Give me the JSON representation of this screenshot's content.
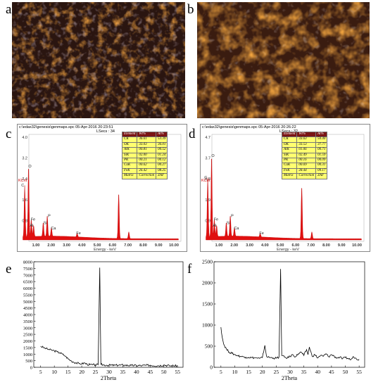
{
  "panels": {
    "a": "a",
    "b": "b",
    "c": "c",
    "d": "d",
    "e": "e",
    "f": "f"
  },
  "eds_c": {
    "file": "c:\\edax32\\genesis\\genmaps.spc",
    "date": "05-Apr-2016 20:23:51",
    "lsecs": "LSecs : 34",
    "y_ticks": [
      "4.0",
      "3.2",
      "2.4",
      "1.6",
      "0.8"
    ],
    "y_unit": "KCnt",
    "x_ticks": [
      "1.00",
      "2.00",
      "3.00",
      "4.00",
      "5.00",
      "6.00",
      "7.00",
      "8.00",
      "9.00",
      "10.00"
    ],
    "x_label": "Energy - keV",
    "peak_labels": [
      "C",
      "O",
      "Fe",
      "Al",
      "Si",
      "P",
      "Ca",
      "Fe"
    ],
    "table": {
      "headers": [
        "Element",
        "Wt%",
        "At%"
      ],
      "rows": [
        [
          "CK",
          "36.61",
          "53.39"
        ],
        [
          "OK",
          "33.03",
          "36.01"
        ],
        [
          "AlK",
          "00.81",
          "00.52"
        ],
        [
          "SiK",
          "02.00",
          "01.24"
        ],
        [
          "PK",
          "00.21",
          "00.12"
        ],
        [
          "CaK",
          "00.62",
          "00.27"
        ],
        [
          "FeK",
          "26.42",
          "08.25"
        ],
        [
          "Matrix",
          "Correction",
          "ZAF"
        ]
      ]
    }
  },
  "eds_d": {
    "file": "c:\\edax32\\genesis\\genmaps.spc",
    "date": "05-Apr-2016 20:26:22",
    "lsecs": "LSecs : 32",
    "y_ticks": [
      "4.7",
      "3.7",
      "2.8",
      "1.9",
      "0.9"
    ],
    "y_unit": "KCnt",
    "x_ticks": [
      "1.00",
      "2.00",
      "3.00",
      "4.00",
      "5.00",
      "6.00",
      "7.00",
      "8.00",
      "9.00",
      "10.00"
    ],
    "x_label": "Energy - keV",
    "peak_labels": [
      "C",
      "O",
      "Fe",
      "Al",
      "Si",
      "P",
      "Ca",
      "Fe"
    ],
    "table": {
      "headers": [
        "Element",
        "Wt%",
        "At%"
      ],
      "rows": [
        [
          "CK",
          "33.63",
          "50.40"
        ],
        [
          "OK",
          "33.53",
          "37.77"
        ],
        [
          "AlK",
          "01.06",
          "00.71"
        ],
        [
          "SiK",
          "02.49",
          "01.59"
        ],
        [
          "PK",
          "00.16",
          "00.09"
        ],
        [
          "CaK",
          "00.69",
          "00.31"
        ],
        [
          "FeK",
          "28.44",
          "09.17"
        ],
        [
          "Matrix",
          "Correction",
          "ZAF"
        ]
      ]
    }
  },
  "xrd_e": {
    "y_ticks": [
      "0",
      "500",
      "1000",
      "1500",
      "2000",
      "2500",
      "3000",
      "3500",
      "4000",
      "4500",
      "5000",
      "5500",
      "6000",
      "6500",
      "7000",
      "7500",
      "8000"
    ],
    "x_ticks": [
      "5",
      "10",
      "15",
      "20",
      "25",
      "30",
      "35",
      "40",
      "45",
      "50",
      "55"
    ],
    "x_label": "2Theta"
  },
  "xrd_f": {
    "y_ticks": [
      "0",
      "500",
      "1000",
      "1500",
      "2000",
      "2500"
    ],
    "x_ticks": [
      "5",
      "10",
      "15",
      "20",
      "25",
      "30",
      "35",
      "40",
      "45",
      "50",
      "55"
    ],
    "x_label": "2Theta"
  },
  "chart_data": [
    {
      "type": "line",
      "panel": "e",
      "xlabel": "2Theta",
      "ylabel": "",
      "xlim": [
        2.5,
        57
      ],
      "ylim": [
        0,
        8000
      ],
      "x": [
        5,
        6,
        7,
        8,
        9,
        10,
        11,
        12,
        13,
        14,
        15,
        16,
        17,
        18,
        19,
        20,
        21,
        22,
        23,
        24,
        25,
        26,
        26.6,
        27,
        28,
        29,
        30,
        32,
        34,
        36,
        38,
        40,
        42,
        45,
        48,
        50,
        52,
        55
      ],
      "y": [
        1600,
        1500,
        1420,
        1350,
        1300,
        1250,
        1180,
        1100,
        1000,
        850,
        650,
        500,
        400,
        330,
        290,
        260,
        330,
        220,
        200,
        190,
        180,
        200,
        7550,
        230,
        170,
        160,
        160,
        150,
        170,
        160,
        140,
        140,
        130,
        160,
        120,
        180,
        120,
        110
      ]
    },
    {
      "type": "line",
      "panel": "f",
      "xlabel": "2Theta",
      "ylabel": "",
      "xlim": [
        2.5,
        57
      ],
      "ylim": [
        0,
        2500
      ],
      "x": [
        5,
        5.5,
        6,
        7,
        8,
        9,
        10,
        11,
        12,
        13,
        14,
        15,
        16,
        17,
        18,
        19,
        20,
        20.9,
        21.5,
        22,
        23,
        24,
        25,
        26,
        26.6,
        27,
        28,
        29,
        30,
        31,
        32,
        33,
        34,
        35,
        36,
        36.5,
        37,
        38,
        39,
        40,
        41,
        42,
        43,
        44,
        45,
        46,
        47,
        48,
        49,
        50,
        51,
        52,
        53,
        54,
        55
      ],
      "y": [
        950,
        700,
        550,
        430,
        360,
        330,
        300,
        280,
        260,
        250,
        240,
        235,
        230,
        225,
        220,
        210,
        230,
        520,
        260,
        240,
        230,
        220,
        215,
        240,
        2330,
        280,
        240,
        220,
        260,
        300,
        250,
        320,
        360,
        280,
        420,
        300,
        480,
        260,
        300,
        220,
        280,
        260,
        320,
        250,
        300,
        260,
        220,
        240,
        200,
        230,
        210,
        180,
        250,
        200,
        190
      ]
    }
  ]
}
